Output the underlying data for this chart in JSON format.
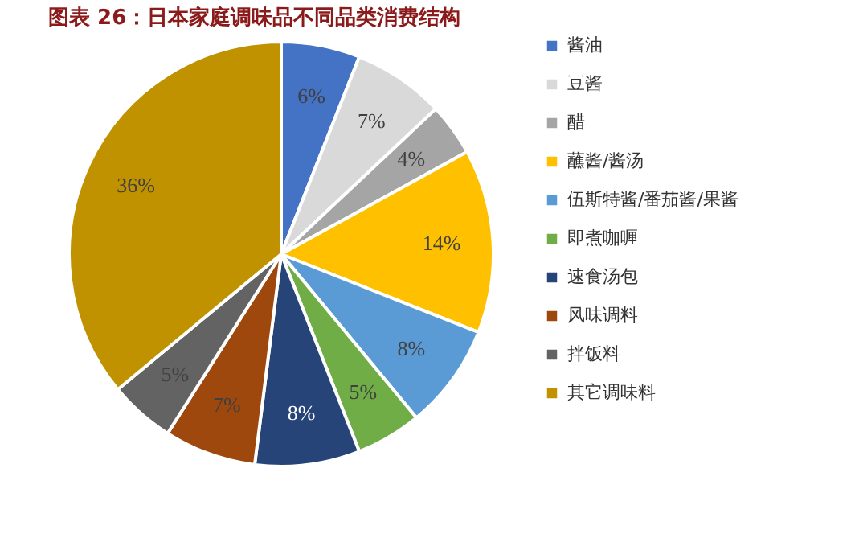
{
  "chart_data": {
    "type": "pie",
    "title": "图表 26：日本家庭调味品不同品类消费结构",
    "categories": [
      "酱油",
      "豆酱",
      "醋",
      "蘸酱/酱汤",
      "伍斯特酱/番茄酱/果酱",
      "即煮咖喱",
      "速食汤包",
      "风味调料",
      "拌饭料",
      "其它调味料"
    ],
    "values": [
      6,
      7,
      4,
      14,
      8,
      5,
      8,
      7,
      5,
      36
    ],
    "colors": [
      "#4472c4",
      "#d9d9d9",
      "#a5a5a5",
      "#ffc000",
      "#5b9bd5",
      "#70ad47",
      "#264478",
      "#9e480e",
      "#636363",
      "#c09200"
    ],
    "value_labels": [
      "6%",
      "7%",
      "4%",
      "14%",
      "8%",
      "5%",
      "8%",
      "7%",
      "5%",
      "36%"
    ],
    "legend": "right"
  }
}
